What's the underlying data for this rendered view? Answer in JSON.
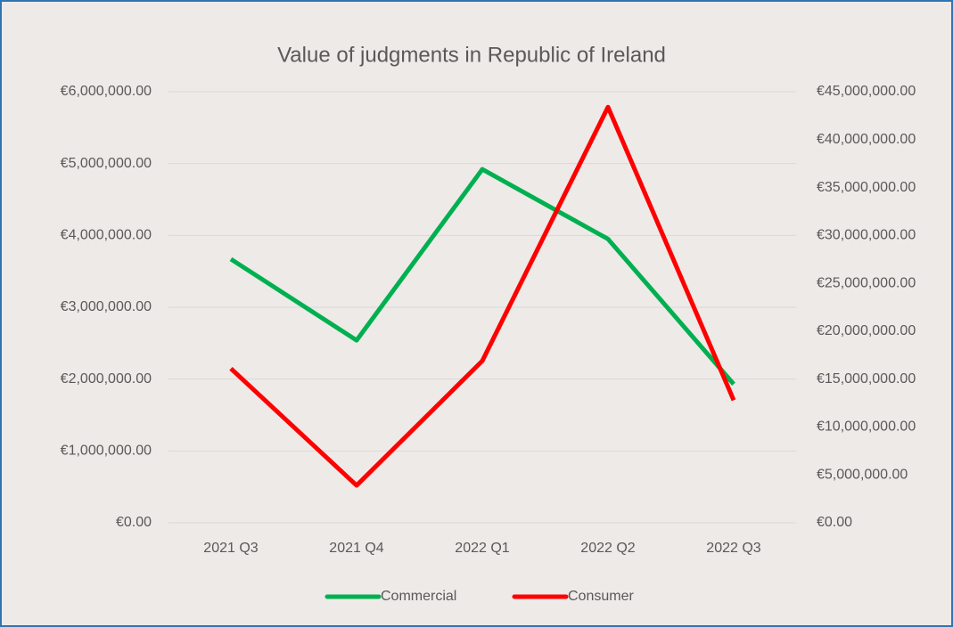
{
  "chart_data": {
    "type": "line",
    "title": "Value of judgments in Republic of Ireland",
    "categories": [
      "2021 Q3",
      "2021 Q4",
      "2022 Q1",
      "2022 Q2",
      "2022 Q3"
    ],
    "series": [
      {
        "name": "Commercial",
        "color": "#00b050",
        "values": [
          3670000,
          2540000,
          4920000,
          3950000,
          1930000
        ]
      },
      {
        "name": "Consumer",
        "color": "#ff0000",
        "axis": "y2",
        "values": [
          16100000,
          3900000,
          16900000,
          43400000,
          12800000
        ]
      }
    ],
    "ylim": [
      0,
      6000000
    ],
    "yticks": [
      {
        "value": 0,
        "label": "€0.00"
      },
      {
        "value": 1000000,
        "label": "€1,000,000.00"
      },
      {
        "value": 2000000,
        "label": "€2,000,000.00"
      },
      {
        "value": 3000000,
        "label": "€3,000,000.00"
      },
      {
        "value": 4000000,
        "label": "€4,000,000.00"
      },
      {
        "value": 5000000,
        "label": "€5,000,000.00"
      },
      {
        "value": 6000000,
        "label": "€6,000,000.00"
      }
    ],
    "y2lim": [
      0,
      45000000
    ],
    "y2ticks": [
      {
        "value": 0,
        "label": "€0.00"
      },
      {
        "value": 5000000,
        "label": "€5,000,000.00"
      },
      {
        "value": 10000000,
        "label": "€10,000,000.00"
      },
      {
        "value": 15000000,
        "label": "€15,000,000.00"
      },
      {
        "value": 20000000,
        "label": "€20,000,000.00"
      },
      {
        "value": 25000000,
        "label": "€25,000,000.00"
      },
      {
        "value": 30000000,
        "label": "€30,000,000.00"
      },
      {
        "value": 35000000,
        "label": "€35,000,000.00"
      },
      {
        "value": 40000000,
        "label": "€40,000,000.00"
      },
      {
        "value": 45000000,
        "label": "€45,000,000.00"
      }
    ],
    "grid": true,
    "legend": "bottom"
  }
}
